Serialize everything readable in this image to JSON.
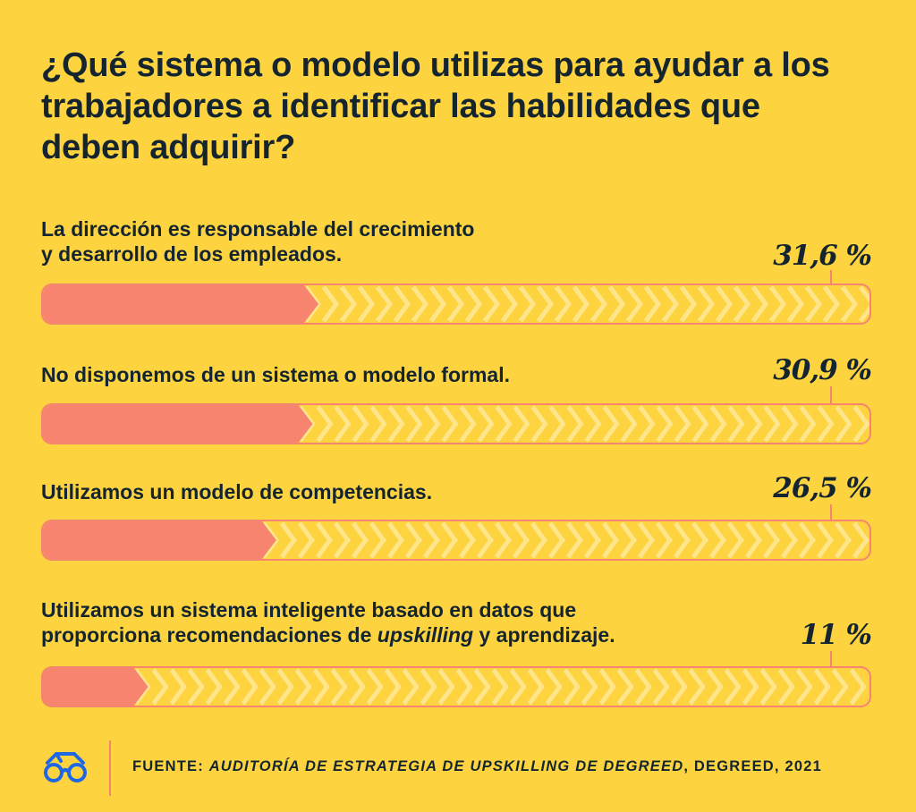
{
  "colors": {
    "background": "#FDD340",
    "bar_fill": "#F6846E",
    "chevron": "#FFE68C",
    "text": "#142530",
    "logo": "#1E68E6"
  },
  "icons": {
    "logo": "glasses-icon"
  },
  "title": "¿Qué sistema o modelo utilizas para ayudar a los trabajadores a identificar las habilidades que deben adquirir?",
  "chart_data": {
    "type": "bar",
    "orientation": "horizontal",
    "title": "¿Qué sistema o modelo utilizas para ayudar a los trabajadores a identificar las habilidades que deben adquirir?",
    "unit": "%",
    "xlim": [
      0,
      100
    ],
    "categories": [
      {
        "line1": "La dirección es responsable del crecimiento",
        "line2": "y desarrollo de los empleados.",
        "line2_pre": "",
        "line2_em": "",
        "line2_post": ""
      },
      {
        "line1": "No disponemos de un sistema o modelo formal.",
        "line2": "",
        "line2_pre": "",
        "line2_em": "",
        "line2_post": ""
      },
      {
        "line1": "Utilizamos un modelo de competencias.",
        "line2": "",
        "line2_pre": "",
        "line2_em": "",
        "line2_post": ""
      },
      {
        "line1": "Utilizamos un sistema inteligente basado en datos que",
        "line2": "",
        "line2_pre": "proporciona recomendaciones de ",
        "line2_em": "upskilling",
        "line2_post": " y aprendizaje."
      }
    ],
    "values": [
      31.6,
      30.9,
      26.5,
      11
    ],
    "value_labels": [
      "31,6 %",
      "30,9 %",
      "26,5 %",
      "11 %"
    ]
  },
  "source": {
    "prefix": "FUENTE: ",
    "title": "AUDITORÍA DE ESTRATEGIA DE UPSKILLING DE DEGREED",
    "suffix": ", DEGREED, 2021"
  }
}
